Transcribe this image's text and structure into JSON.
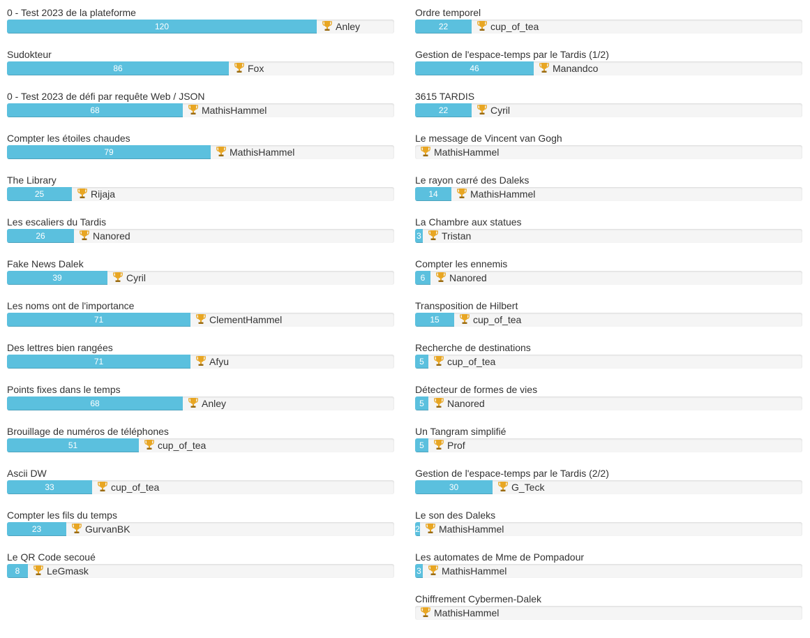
{
  "max_score": 150,
  "colors": {
    "bar_fill": "#5bc0de",
    "track": "#f5f5f5",
    "text": "#333333",
    "bar_text": "#ffffff",
    "trophy": "#e8a623"
  },
  "icons": {
    "winner": "trophy-icon"
  },
  "left": [
    {
      "title": "0 - Test 2023 de la plateforme",
      "score": 120,
      "winner": "Anley"
    },
    {
      "title": "Sudokteur",
      "score": 86,
      "winner": "Fox"
    },
    {
      "title": "0 - Test 2023 de défi par requête Web / JSON",
      "score": 68,
      "winner": "MathisHammel"
    },
    {
      "title": "Compter les étoiles chaudes",
      "score": 79,
      "winner": "MathisHammel"
    },
    {
      "title": "The Library",
      "score": 25,
      "winner": "Rijaja"
    },
    {
      "title": "Les escaliers du Tardis",
      "score": 26,
      "winner": "Nanored"
    },
    {
      "title": "Fake News Dalek",
      "score": 39,
      "winner": "Cyril"
    },
    {
      "title": "Les noms ont de l'importance",
      "score": 71,
      "winner": "ClementHammel"
    },
    {
      "title": "Des lettres bien rangées",
      "score": 71,
      "winner": "Afyu"
    },
    {
      "title": "Points fixes dans le temps",
      "score": 68,
      "winner": "Anley"
    },
    {
      "title": "Brouillage de numéros de téléphones",
      "score": 51,
      "winner": "cup_of_tea"
    },
    {
      "title": "Ascii DW",
      "score": 33,
      "winner": "cup_of_tea"
    },
    {
      "title": "Compter les fils du temps",
      "score": 23,
      "winner": "GurvanBK"
    },
    {
      "title": "Le QR Code secoué",
      "score": 8,
      "winner": "LeGmask"
    }
  ],
  "right": [
    {
      "title": "Ordre temporel",
      "score": 22,
      "winner": "cup_of_tea"
    },
    {
      "title": "Gestion de l'espace-temps par le Tardis (1/2)",
      "score": 46,
      "winner": "Manandco"
    },
    {
      "title": "3615 TARDIS",
      "score": 22,
      "winner": "Cyril"
    },
    {
      "title": "Le message de Vincent van Gogh",
      "score": 0,
      "winner": "MathisHammel"
    },
    {
      "title": "Le rayon carré des Daleks",
      "score": 14,
      "winner": "MathisHammel"
    },
    {
      "title": "La Chambre aux statues",
      "score": 3,
      "winner": "Tristan"
    },
    {
      "title": "Compter les ennemis",
      "score": 6,
      "winner": "Nanored"
    },
    {
      "title": "Transposition de Hilbert",
      "score": 15,
      "winner": "cup_of_tea"
    },
    {
      "title": "Recherche de destinations",
      "score": 5,
      "winner": "cup_of_tea"
    },
    {
      "title": "Détecteur de formes de vies",
      "score": 5,
      "winner": "Nanored"
    },
    {
      "title": "Un Tangram simplifié",
      "score": 5,
      "winner": "Prof"
    },
    {
      "title": "Gestion de l'espace-temps par le Tardis (2/2)",
      "score": 30,
      "winner": "G_Teck"
    },
    {
      "title": "Le son des Daleks",
      "score": 2,
      "winner": "MathisHammel"
    },
    {
      "title": "Les automates de Mme de Pompadour",
      "score": 3,
      "winner": "MathisHammel"
    },
    {
      "title": "Chiffrement Cybermen-Dalek",
      "score": 0,
      "winner": "MathisHammel"
    }
  ]
}
